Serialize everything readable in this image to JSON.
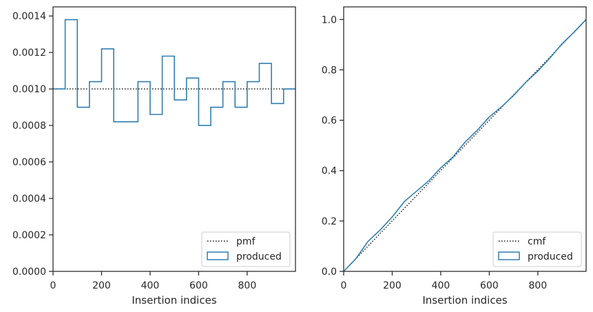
{
  "colors": {
    "produced": "#2f7fb3",
    "reference": "#111111",
    "axes": "#262626"
  },
  "chart_data": [
    {
      "type": "histogram",
      "panel": "left",
      "xlabel": "Insertion indices",
      "ylabel": "",
      "xlim": [
        0,
        999
      ],
      "ylim": [
        0,
        0.00145
      ],
      "xticks": [
        0,
        200,
        400,
        600,
        800
      ],
      "yticks": [
        0,
        0.0002,
        0.0004,
        0.0006,
        0.0008,
        0.001,
        0.0012,
        0.0014
      ],
      "ytick_labels": [
        "0.0000",
        "0.0002",
        "0.0004",
        "0.0006",
        "0.0008",
        "0.0010",
        "0.0012",
        "0.0014"
      ],
      "bin_edges": [
        0,
        50,
        100,
        150,
        200,
        250,
        300,
        350,
        400,
        450,
        500,
        550,
        600,
        650,
        700,
        750,
        800,
        850,
        900,
        950,
        999
      ],
      "series": [
        {
          "name": "pmf",
          "style": "dotted",
          "constant": 0.001
        },
        {
          "name": "produced",
          "style": "step",
          "values": [
            0.001,
            0.00138,
            0.0009,
            0.00104,
            0.00122,
            0.00082,
            0.00082,
            0.00104,
            0.00086,
            0.00118,
            0.00094,
            0.00106,
            0.0008,
            0.0009,
            0.00104,
            0.0009,
            0.00104,
            0.00114,
            0.00092,
            0.001
          ]
        }
      ],
      "legend": {
        "position": "lower right",
        "entries": [
          "pmf",
          "produced"
        ]
      }
    },
    {
      "type": "line",
      "panel": "right",
      "xlabel": "Insertion indices",
      "ylabel": "",
      "xlim": [
        0,
        999
      ],
      "ylim": [
        0,
        1.05
      ],
      "xticks": [
        0,
        200,
        400,
        600,
        800
      ],
      "yticks": [
        0,
        0.2,
        0.4,
        0.6,
        0.8,
        1.0
      ],
      "ytick_labels": [
        "0.0",
        "0.2",
        "0.4",
        "0.6",
        "0.8",
        "1.0"
      ],
      "series": [
        {
          "name": "cmf",
          "style": "dotted",
          "x": [
            0,
            999
          ],
          "y": [
            0,
            1.0
          ]
        },
        {
          "name": "produced",
          "style": "step",
          "x": [
            0,
            50,
            100,
            150,
            200,
            250,
            300,
            350,
            400,
            450,
            500,
            550,
            600,
            650,
            700,
            750,
            800,
            850,
            900,
            950,
            999
          ],
          "y": [
            0,
            0.05,
            0.119,
            0.164,
            0.216,
            0.277,
            0.318,
            0.359,
            0.411,
            0.454,
            0.513,
            0.56,
            0.613,
            0.653,
            0.698,
            0.75,
            0.795,
            0.847,
            0.904,
            0.95,
            1.0
          ]
        }
      ],
      "legend": {
        "position": "lower right",
        "entries": [
          "cmf",
          "produced"
        ]
      }
    }
  ]
}
